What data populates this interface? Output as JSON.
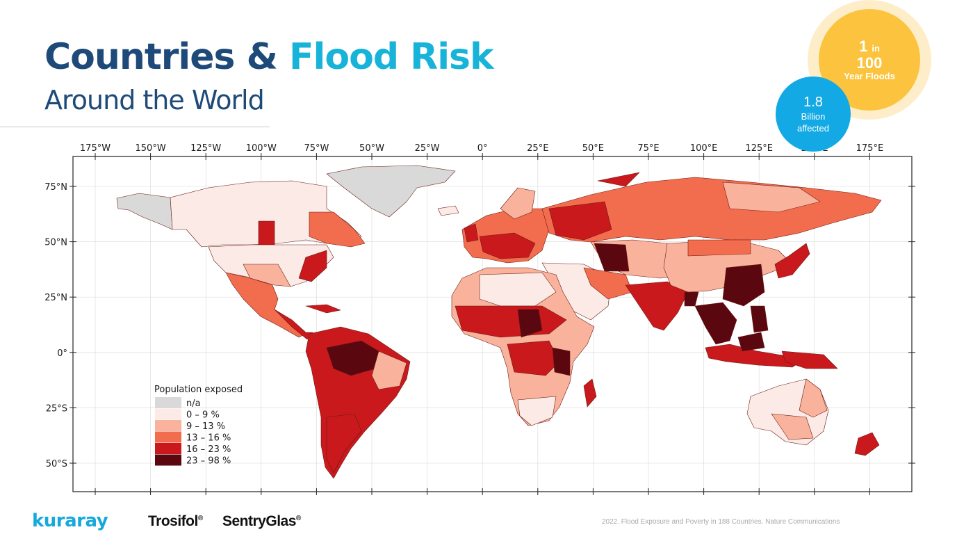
{
  "header": {
    "title_part1": "Countries &",
    "title_part2": "Flood Risk",
    "subtitle": "Around the World"
  },
  "badges": {
    "yellow": {
      "value": "1",
      "in": "in",
      "value2": "100",
      "label": "Year Floods",
      "color": "#fbc33e"
    },
    "blue": {
      "value": "1.8",
      "line1": "Billion",
      "line2": "affected",
      "color": "#13a9e4"
    }
  },
  "map": {
    "lon_ticks": [
      "175°W",
      "150°W",
      "125°W",
      "100°W",
      "75°W",
      "50°W",
      "25°W",
      "0°",
      "25°E",
      "50°E",
      "75°E",
      "100°E",
      "125°E",
      "150°E",
      "175°E"
    ],
    "lat_ticks": [
      "75°N",
      "50°N",
      "25°N",
      "0°",
      "25°S",
      "50°S"
    ],
    "legend": {
      "title": "Population exposed",
      "items": [
        {
          "label": "n/a",
          "color": "#d9d9d9"
        },
        {
          "label": "0 – 9 %",
          "color": "#fbeae5"
        },
        {
          "label": "9 – 13 %",
          "color": "#f9b39d"
        },
        {
          "label": "13 – 16 %",
          "color": "#f26d4e"
        },
        {
          "label": "16 – 23 %",
          "color": "#c9191d"
        },
        {
          "label": "23 – 98 %",
          "color": "#5a0710"
        }
      ]
    }
  },
  "footer": {
    "brand1": "kuraray",
    "brand2": "Trosifol",
    "brand3": "SentryGlas",
    "reg": "®",
    "source": "2022. Flood Exposure and Poverty in 188 Countries. Nature Communications"
  }
}
